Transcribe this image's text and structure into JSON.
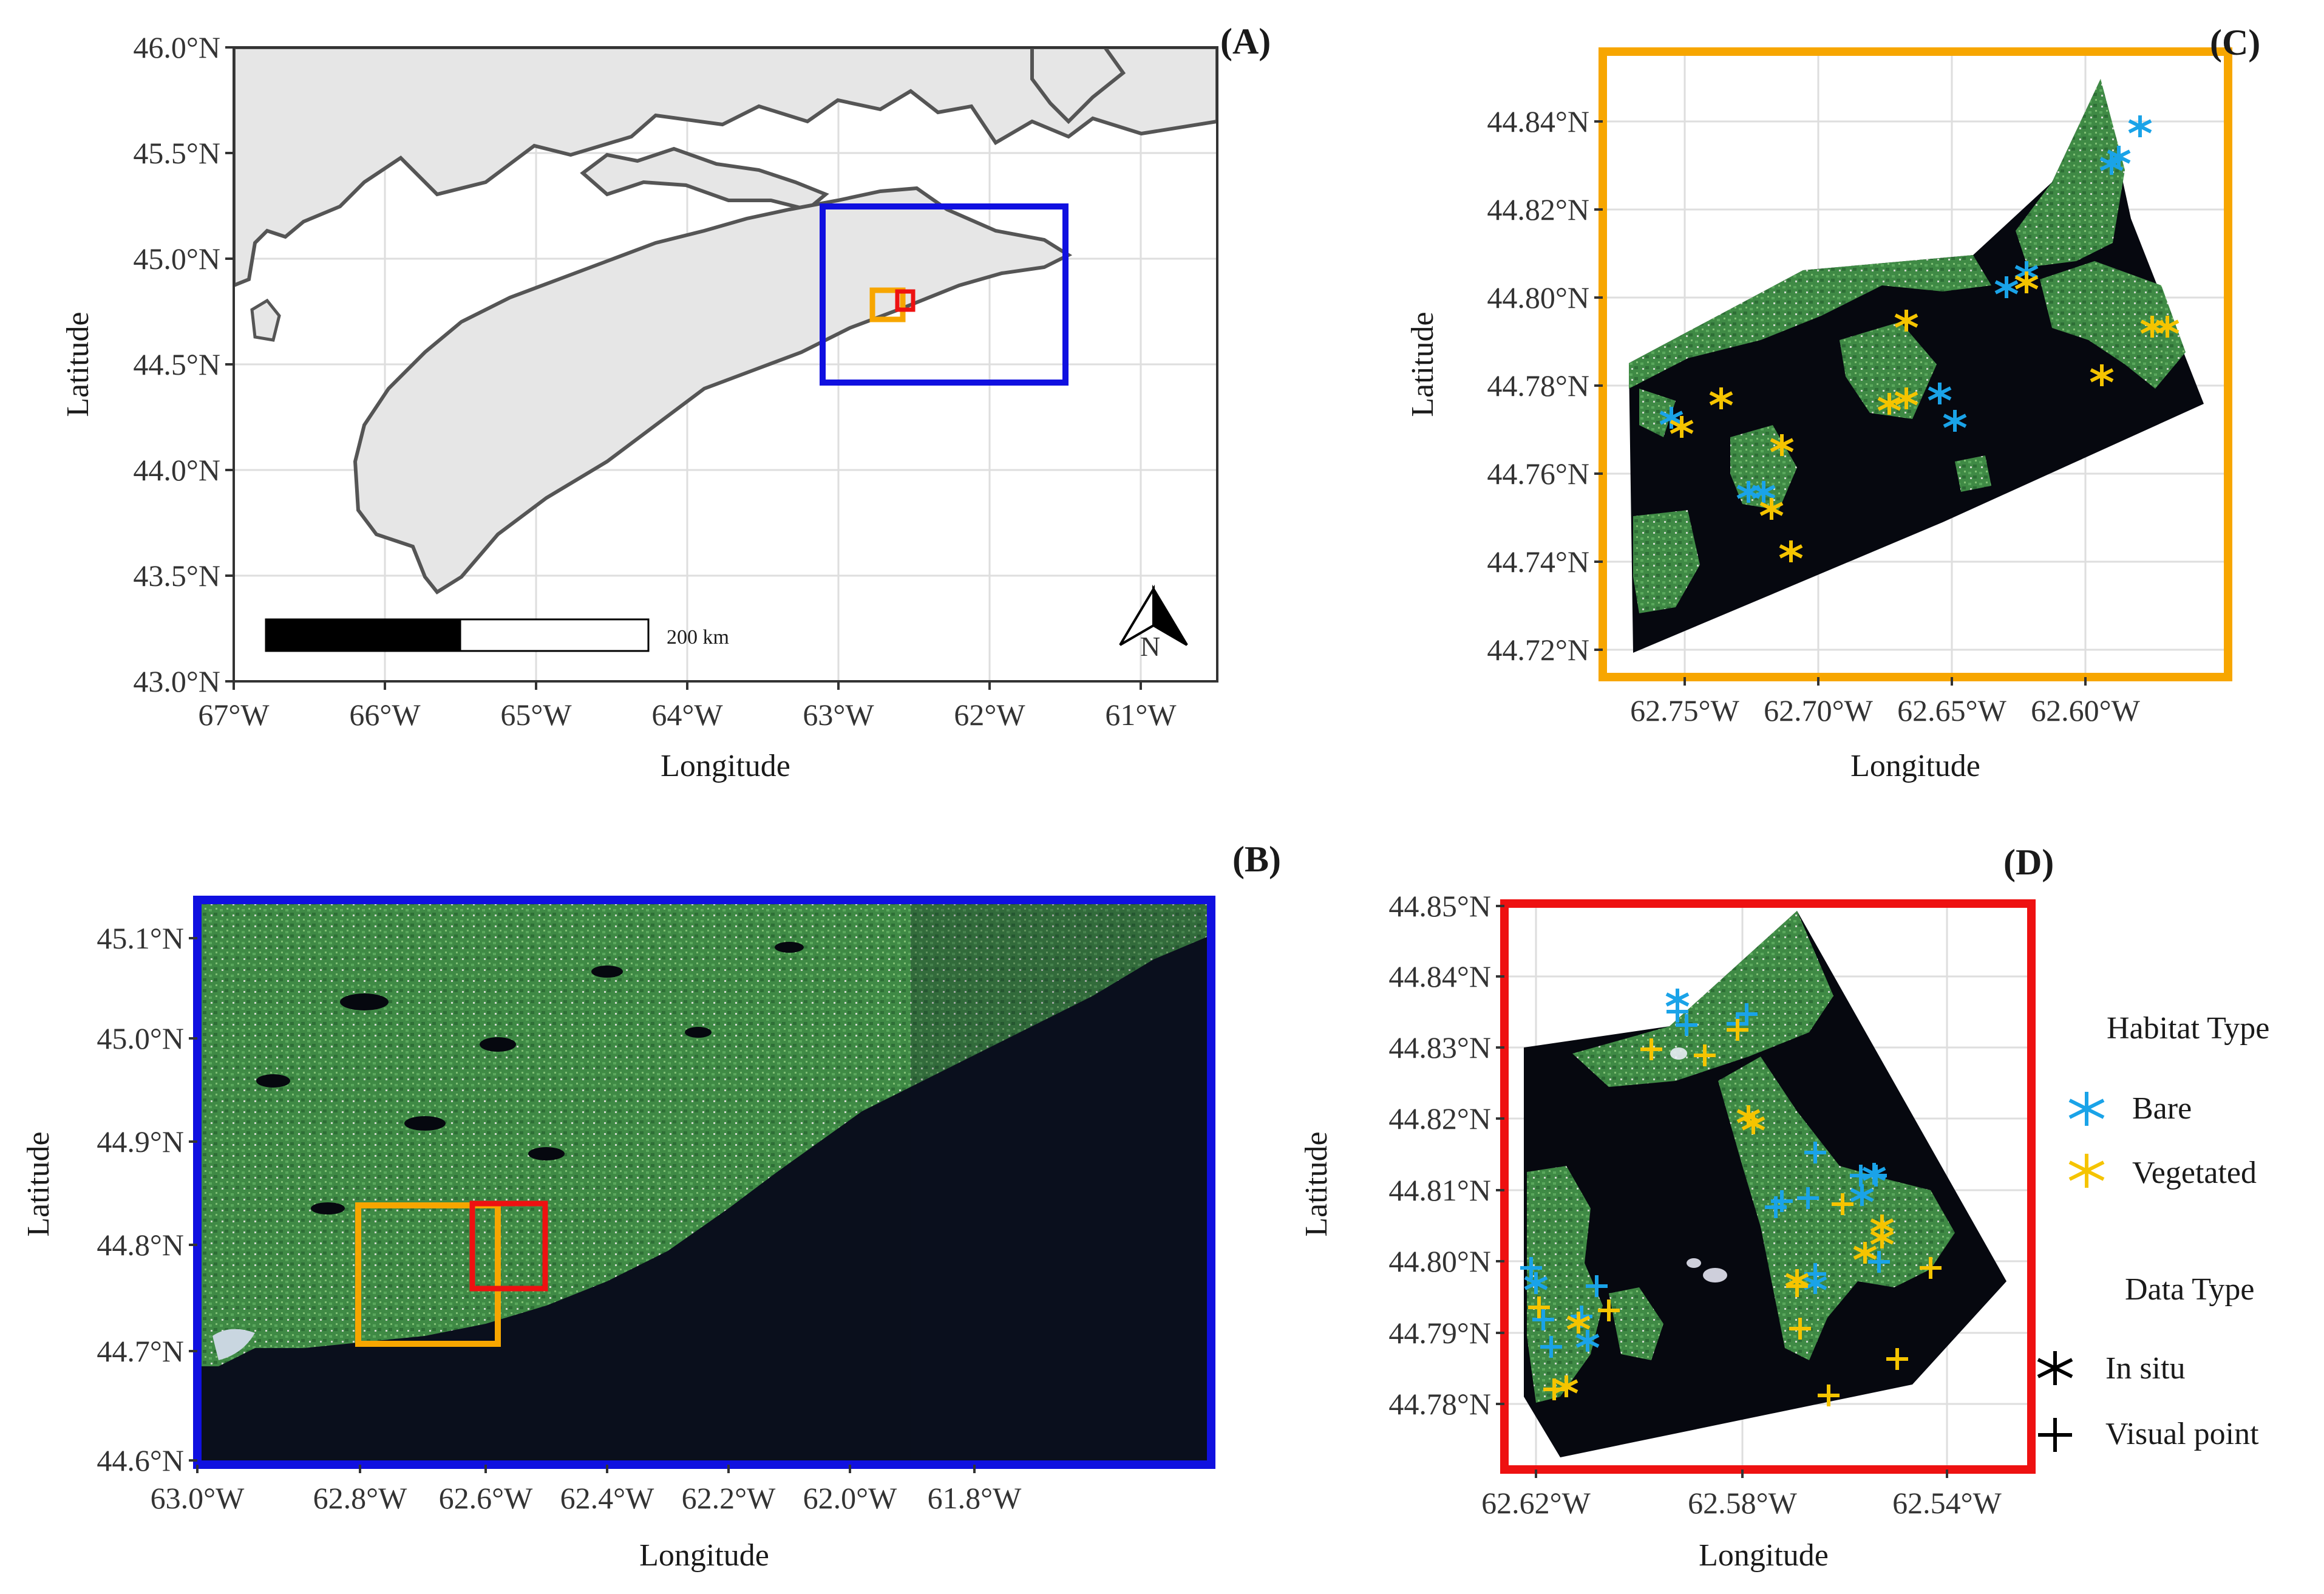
{
  "panels": {
    "A": {
      "label": "(A)",
      "xlabel": "Longitude",
      "ylabel": "Latitude",
      "x_ticks": [
        "67°W",
        "66°W",
        "65°W",
        "64°W",
        "63°W",
        "62°W",
        "61°W"
      ],
      "y_ticks": [
        "46.0°N",
        "45.5°N",
        "45.0°N",
        "44.5°N",
        "44.0°N",
        "43.5°N",
        "43.0°N"
      ],
      "scale_bar": "200 km",
      "north_arrow": "N",
      "inset_boxes": [
        {
          "name": "B extent",
          "color": "#1010e0"
        },
        {
          "name": "C extent",
          "color": "#f7a600"
        },
        {
          "name": "D extent",
          "color": "#ee1111"
        }
      ]
    },
    "B": {
      "label": "(B)",
      "xlabel": "Longitude",
      "ylabel": "Latitude",
      "x_ticks": [
        "63.0°W",
        "62.8°W",
        "62.6°W",
        "62.4°W",
        "62.2°W",
        "62.0°W",
        "61.8°W"
      ],
      "y_ticks": [
        "45.1°N",
        "45.0°N",
        "44.9°N",
        "44.8°N",
        "44.7°N",
        "44.6°N"
      ],
      "frame_color": "#1010e0"
    },
    "C": {
      "label": "(C)",
      "xlabel": "Longitude",
      "ylabel": "Latitude",
      "x_ticks": [
        "62.75°W",
        "62.70°W",
        "62.65°W",
        "62.60°W"
      ],
      "y_ticks": [
        "44.84°N",
        "44.82°N",
        "44.80°N",
        "44.78°N",
        "44.76°N",
        "44.74°N",
        "44.72°N"
      ],
      "frame_color": "#f7a600"
    },
    "D": {
      "label": "(D)",
      "xlabel": "Longitude",
      "ylabel": "Latitude",
      "x_ticks": [
        "62.62°W",
        "62.58°W",
        "62.54°W"
      ],
      "y_ticks": [
        "44.85°N",
        "44.84°N",
        "44.83°N",
        "44.82°N",
        "44.81°N",
        "44.80°N",
        "44.79°N",
        "44.78°N"
      ],
      "frame_color": "#ee1111"
    }
  },
  "legend": {
    "habitat_title": "Habitat Type",
    "habitat_items": [
      {
        "label": "Bare",
        "color": "#1aa3e8"
      },
      {
        "label": "Vegetated",
        "color": "#f5c400"
      }
    ],
    "data_title": "Data Type",
    "data_items": [
      {
        "label": "In situ",
        "symbol": "asterisk"
      },
      {
        "label": "Visual point",
        "symbol": "plus"
      }
    ]
  },
  "colors": {
    "bare": "#1aa3e8",
    "vegetated": "#f5c400",
    "water": "#06080f",
    "land": "#e6e6e6"
  }
}
